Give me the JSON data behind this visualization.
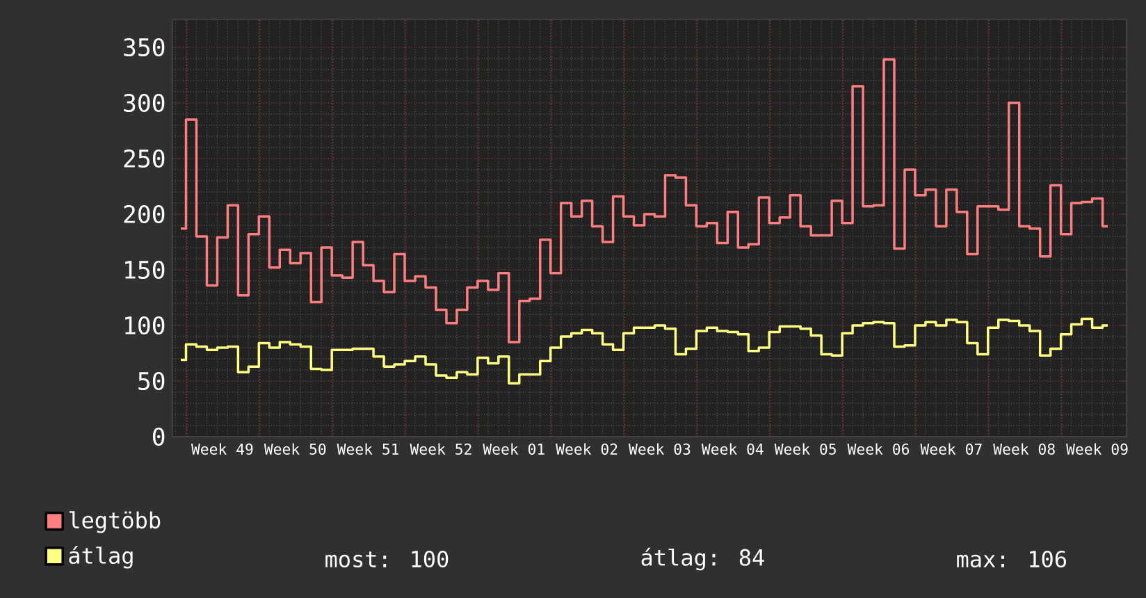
{
  "chart_data": {
    "type": "step",
    "categories": [
      null,
      null,
      null,
      null,
      "Week 49",
      null,
      null,
      null,
      null,
      null,
      null,
      "Week 50",
      null,
      null,
      null,
      null,
      null,
      null,
      "Week 51",
      null,
      null,
      null,
      null,
      null,
      null,
      "Week 52",
      null,
      null,
      null,
      null,
      null,
      null,
      "Week 01",
      null,
      null,
      null,
      null,
      null,
      null,
      "Week 02",
      null,
      null,
      null,
      null,
      null,
      null,
      "Week 03",
      null,
      null,
      null,
      null,
      null,
      null,
      "Week 04",
      null,
      null,
      null,
      null,
      null,
      null,
      "Week 05",
      null,
      null,
      null,
      null,
      null,
      null,
      "Week 06",
      null,
      null,
      null,
      null,
      null,
      null,
      "Week 07",
      null,
      null,
      null,
      null,
      null,
      null,
      "Week 08",
      null,
      null,
      null,
      null,
      null,
      null,
      "Week 09",
      null
    ],
    "series": [
      {
        "name": "legtöbb",
        "color": "#ff7f7f",
        "values": [
          187,
          285,
          180,
          136,
          179,
          208,
          127,
          182,
          198,
          152,
          168,
          156,
          165,
          121,
          170,
          145,
          143,
          175,
          154,
          140,
          130,
          164,
          140,
          144,
          134,
          114,
          102,
          114,
          134,
          140,
          132,
          147,
          85,
          122,
          124,
          177,
          147,
          210,
          198,
          212,
          189,
          175,
          216,
          198,
          190,
          200,
          198,
          235,
          233,
          208,
          189,
          192,
          174,
          202,
          170,
          173,
          215,
          192,
          197,
          217,
          189,
          181,
          181,
          212,
          192,
          315,
          207,
          208,
          339,
          169,
          240,
          217,
          222,
          189,
          222,
          202,
          164,
          207,
          207,
          204,
          300,
          189,
          187,
          162,
          226,
          182,
          210,
          211,
          214,
          189
        ]
      },
      {
        "name": "átlag",
        "color": "#ffff80",
        "values": [
          69,
          83,
          81,
          78,
          80,
          81,
          58,
          63,
          84,
          80,
          85,
          83,
          81,
          61,
          60,
          78,
          78,
          79,
          79,
          72,
          63,
          65,
          68,
          72,
          65,
          55,
          53,
          58,
          56,
          71,
          66,
          72,
          48,
          56,
          56,
          68,
          80,
          90,
          93,
          96,
          93,
          83,
          78,
          93,
          98,
          98,
          100,
          97,
          74,
          79,
          95,
          98,
          95,
          94,
          92,
          77,
          80,
          94,
          99,
          99,
          97,
          91,
          74,
          73,
          93,
          100,
          102,
          103,
          102,
          81,
          82,
          100,
          103,
          100,
          105,
          103,
          84,
          74,
          98,
          105,
          104,
          100,
          95,
          73,
          79,
          92,
          101,
          106,
          98,
          100
        ]
      }
    ],
    "ylim": [
      0,
      375
    ],
    "yticks": [
      0,
      50,
      100,
      150,
      200,
      250,
      300,
      350
    ],
    "grid": true,
    "legend": "bottom",
    "annotations": [
      "most: 100",
      "átlag: 84",
      "max: 106"
    ]
  }
}
